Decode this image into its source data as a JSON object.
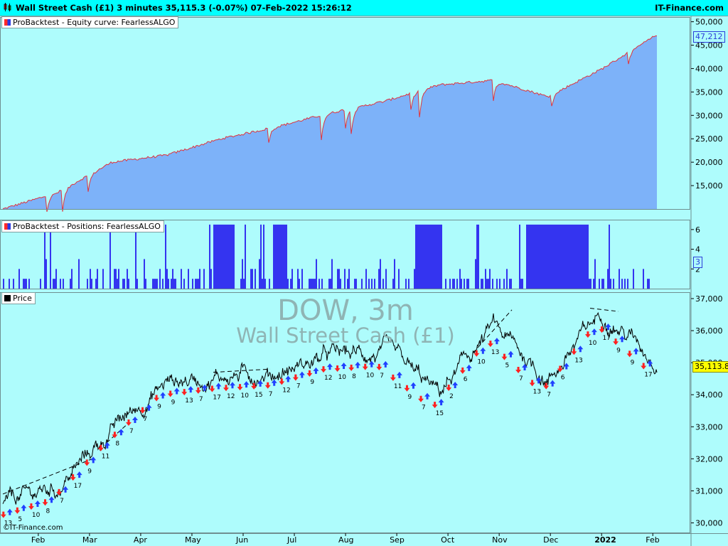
{
  "window": {
    "title": "Wall Street Cash (£1) 3 minutes 35,115.3 (-0.07%) 07-Feb-2022 15:26:12",
    "brand": "IT-Finance.com"
  },
  "watermark": {
    "line1": "DOW, 3m",
    "line2": "Wall Street Cash (£1)"
  },
  "copyright": "©IT-Finance.com",
  "colors": {
    "background": "#aefcfc",
    "equity_fill": "#7db2f9",
    "equity_line": "#e0323c",
    "positions_bar": "#3434f0",
    "price_line": "#000000",
    "signal_up": "#2040ff",
    "signal_down": "#ff2020",
    "price_tag": "#ffff00"
  },
  "panels": {
    "equity": {
      "label": "ProBacktest - Equity curve: FearlessALGO",
      "last_value_label": "47,212"
    },
    "positions": {
      "label": "ProBacktest - Positions: FearlessALGO",
      "last_value_label": "3"
    },
    "price": {
      "label": "Price",
      "last_value_label": "35,113.8"
    }
  },
  "x_axis": {
    "labels": [
      "Feb",
      "Mar",
      "Apr",
      "May",
      "Jun",
      "Jul",
      "Aug",
      "Sep",
      "Oct",
      "Nov",
      "Dec",
      "2022",
      "Feb"
    ],
    "bold_label": "2022"
  },
  "chart_data": [
    {
      "type": "area",
      "title": "ProBacktest - Equity curve: FearlessALGO",
      "ylim": [
        10000,
        51000
      ],
      "y_ticks": [
        "50,000",
        "45,000",
        "40,000",
        "35,000",
        "30,000",
        "25,000",
        "20,000",
        "15,000"
      ],
      "x": [
        "Feb",
        "Mar",
        "Apr",
        "May",
        "Jun",
        "Jul",
        "Aug",
        "Sep",
        "Oct",
        "Nov",
        "Dec",
        "2022",
        "Feb"
      ],
      "series": [
        {
          "values": [
            10000,
            13500,
            20000,
            21500,
            25000,
            27500,
            30500,
            33000,
            36500,
            37500,
            34000,
            40000,
            47212
          ]
        }
      ],
      "last_value": 47212
    },
    {
      "type": "bar",
      "title": "ProBacktest - Positions: FearlessALGO",
      "ylim": [
        0,
        7
      ],
      "y_ticks": [
        "6",
        "4",
        "2"
      ],
      "last_value": 3
    },
    {
      "type": "line",
      "title": "Price",
      "ylim": [
        29700,
        37200
      ],
      "y_ticks": [
        "37,000",
        "36,000",
        "35,000",
        "34,000",
        "33,000",
        "32,000",
        "31,000",
        "30,000"
      ],
      "x": [
        "Feb",
        "Mar",
        "Apr",
        "May",
        "Jun",
        "Jul",
        "Aug",
        "Sep",
        "Oct",
        "Nov",
        "Dec",
        "2022",
        "Feb"
      ],
      "series": [
        {
          "values": [
            30600,
            31100,
            32900,
            34400,
            34600,
            34700,
            35200,
            35300,
            34000,
            36100,
            34500,
            36600,
            35114
          ]
        }
      ],
      "last_value": 35113.8,
      "signal_labels": [
        "13",
        "5",
        "10",
        "8",
        "7",
        "17",
        "9",
        "11",
        "8",
        "7",
        "7",
        "9",
        "9",
        "13",
        "7",
        "17",
        "12",
        "10",
        "15",
        "7",
        "12",
        "7",
        "9",
        "12",
        "10",
        "8",
        "10",
        "7",
        "11",
        "9",
        "7",
        "15",
        "2",
        "6",
        "10",
        "13",
        "5",
        "7",
        "13",
        "7",
        "6",
        "13",
        "10",
        "17",
        "9",
        "9",
        "17"
      ]
    }
  ]
}
